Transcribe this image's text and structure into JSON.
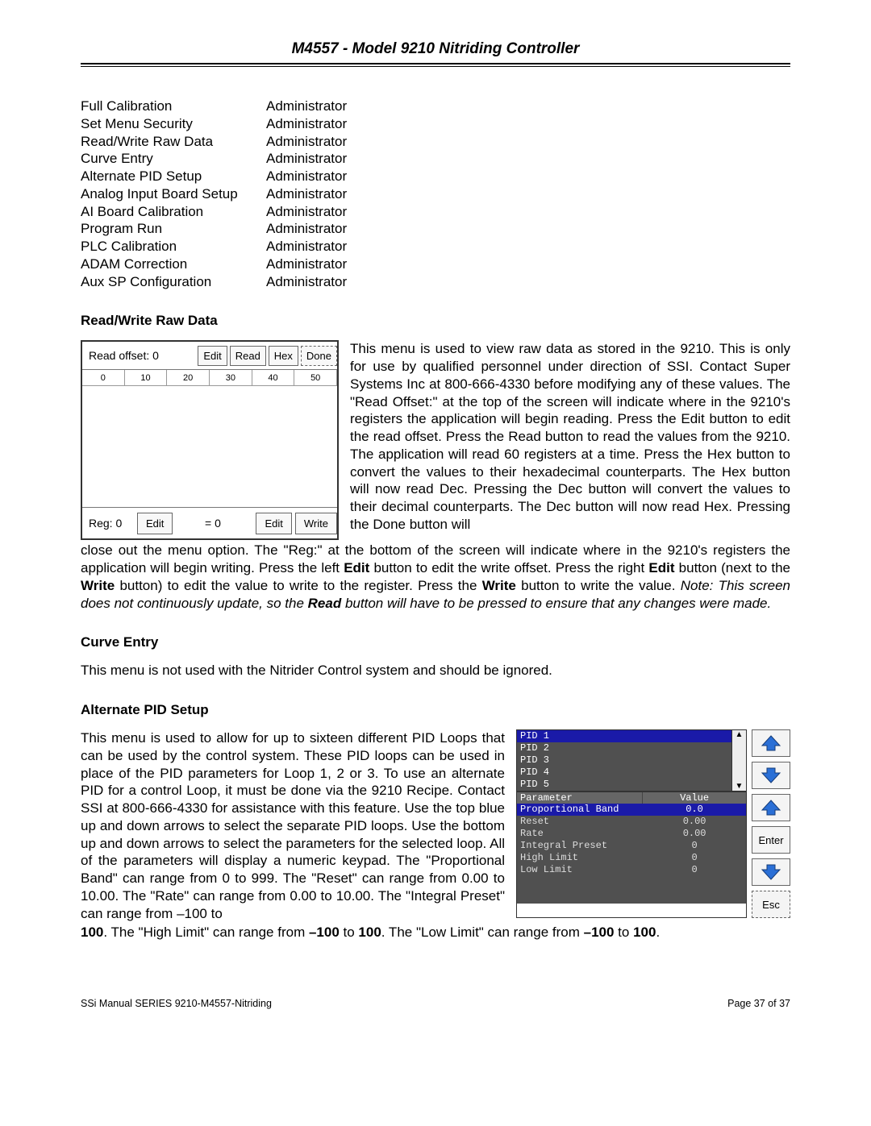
{
  "header": {
    "title": "M4557 - Model 9210 Nitriding Controller"
  },
  "permissions": [
    {
      "name": "Full Calibration",
      "role": "Administrator"
    },
    {
      "name": "Set Menu Security",
      "role": "Administrator"
    },
    {
      "name": "Read/Write Raw Data",
      "role": "Administrator"
    },
    {
      "name": "Curve Entry",
      "role": "Administrator"
    },
    {
      "name": "Alternate PID Setup",
      "role": "Administrator"
    },
    {
      "name": "Analog Input Board Setup",
      "role": "Administrator"
    },
    {
      "name": "AI Board Calibration",
      "role": "Administrator"
    },
    {
      "name": "Program Run",
      "role": "Administrator"
    },
    {
      "name": "PLC Calibration",
      "role": "Administrator"
    },
    {
      "name": "ADAM Correction",
      "role": "Administrator"
    },
    {
      "name": "Aux SP Configuration",
      "role": "Administrator"
    }
  ],
  "rw": {
    "heading": "Read/Write Raw Data",
    "shot": {
      "read_offset_label": "Read offset: 0",
      "btn_edit": "Edit",
      "btn_read": "Read",
      "btn_hex": "Hex",
      "btn_done": "Done",
      "grid_heads": [
        "0",
        "10",
        "20",
        "30",
        "40",
        "50"
      ],
      "reg_label": "Reg: 0",
      "eq_label": "= 0",
      "btn_edit2": "Edit",
      "btn_edit3": "Edit",
      "btn_write": "Write"
    },
    "para_top": "This menu is used to view raw data as stored in the 9210. This is only for use by qualified personnel under direction of SSI.  Contact Super Systems Inc at 800-666-4330 before modifying any of these values.  The \"Read Offset:\" at the top of the screen will indicate where in the 9210's registers the application will begin reading.  Press the ",
    "para_mid": " button to edit the read offset.  Press the ",
    "b_edit": "Edit",
    "b_read": "Read",
    "para_mid2": " button to read the values from the 9210.  The application will read 60 registers at a time.  Press the ",
    "b_hex": "Hex",
    "para_mid3": " button to convert the values to their hexadecimal counterparts.  The ",
    "para_mid4": " button will now read ",
    "b_dec": "Dec",
    "para_mid5": ".  Pressing the ",
    "para_mid6": " button will convert the values to their decimal counterparts.  The ",
    "para_mid7": " button will now read ",
    "para_mid8": ".  Pressing the ",
    "b_done": "Done",
    "para_mid9": " button will ",
    "para_bottom1": "close out the menu option.  The \"Reg:\" at the bottom of the screen will indicate where in the 9210's registers the application will begin writing.  Press the left ",
    "para_bottom2": " button to edit the write offset.   Press the right ",
    "para_bottom3": " button (next to the ",
    "b_write": "Write",
    "para_bottom4": " button) to edit the value to write to the register.  Press the ",
    "para_bottom5": " button to write the value.  ",
    "note_i": "Note:  This screen does not continuously update, so the ",
    "note_bi": "Read",
    "note_i2": " button will have to be pressed to ensure that any changes were made."
  },
  "curve": {
    "heading": "Curve Entry",
    "text": "This menu is not used with the Nitrider Control system and should be ignored."
  },
  "pid": {
    "heading": "Alternate PID Setup",
    "text1": "This menu is used to allow for up to sixteen different PID Loops that can be used by the control system.  These PID loops can be used in place of the PID parameters for Loop 1, 2 or 3.  To use an alternate PID for a control Loop, it must be done via the 9210 Recipe. Contact SSI at 800-666-4330 for assistance with this feature.  Use the top blue up and down arrows to select the separate PID loops. Use the bottom up and down arrows to select the parameters for the selected loop.  All of the parameters will display a numeric keypad.  The \"Proportional Band\" can range from ",
    "r0": "0",
    "to": " to ",
    "r999": "999",
    "text2": ".  The \"Reset\" can range from ",
    "r000": "0.00",
    "r1000": "10.00",
    "text3": ".  The \"Rate\" can range from ",
    "text4": ".  The \"Integral Preset\" can range from ",
    "rn100": "–100",
    "r100": "100",
    "text5": ".  The \"High Limit\" can range from ",
    "text6": ".  The \"Low Limit\" can range from ",
    "period": ".",
    "shot": {
      "pids": [
        "PID 1",
        "PID 2",
        "PID 3",
        "PID 4",
        "PID 5"
      ],
      "param_head_c1": "Parameter",
      "param_head_c2": "Value",
      "params": [
        {
          "n": "Proportional Band",
          "v": "0.0",
          "sel": true
        },
        {
          "n": "Reset",
          "v": "0.00"
        },
        {
          "n": "Rate",
          "v": "0.00"
        },
        {
          "n": "Integral Preset",
          "v": "0"
        },
        {
          "n": "High Limit",
          "v": "0"
        },
        {
          "n": "Low Limit",
          "v": "0"
        }
      ],
      "btn_enter": "Enter",
      "btn_esc": "Esc"
    }
  },
  "footer": {
    "left": "SSi Manual SERIES 9210-M4557-Nitriding",
    "right": "Page 37 of 37"
  },
  "arrow_up_color": "#2a6fd6",
  "arrow_dn_color": "#2a6fd6"
}
